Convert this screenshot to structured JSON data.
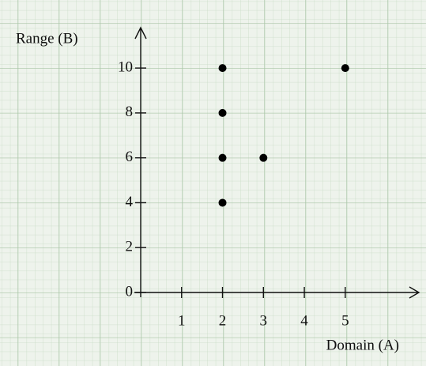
{
  "chart_data": {
    "type": "scatter",
    "x_label": "Domain (A)",
    "y_label": "Range (B)",
    "series": [
      {
        "name": null,
        "color": "#000000",
        "x": [
          2,
          2,
          2,
          2,
          3,
          5
        ],
        "values": [
          10,
          8,
          6,
          4,
          6,
          10
        ]
      }
    ],
    "xlim": [
      0,
      6.8
    ],
    "ylim": [
      0,
      11.8
    ],
    "xticks": [
      1,
      2,
      3,
      4,
      5
    ],
    "yticks": [
      0,
      2,
      4,
      6,
      8,
      10
    ]
  }
}
